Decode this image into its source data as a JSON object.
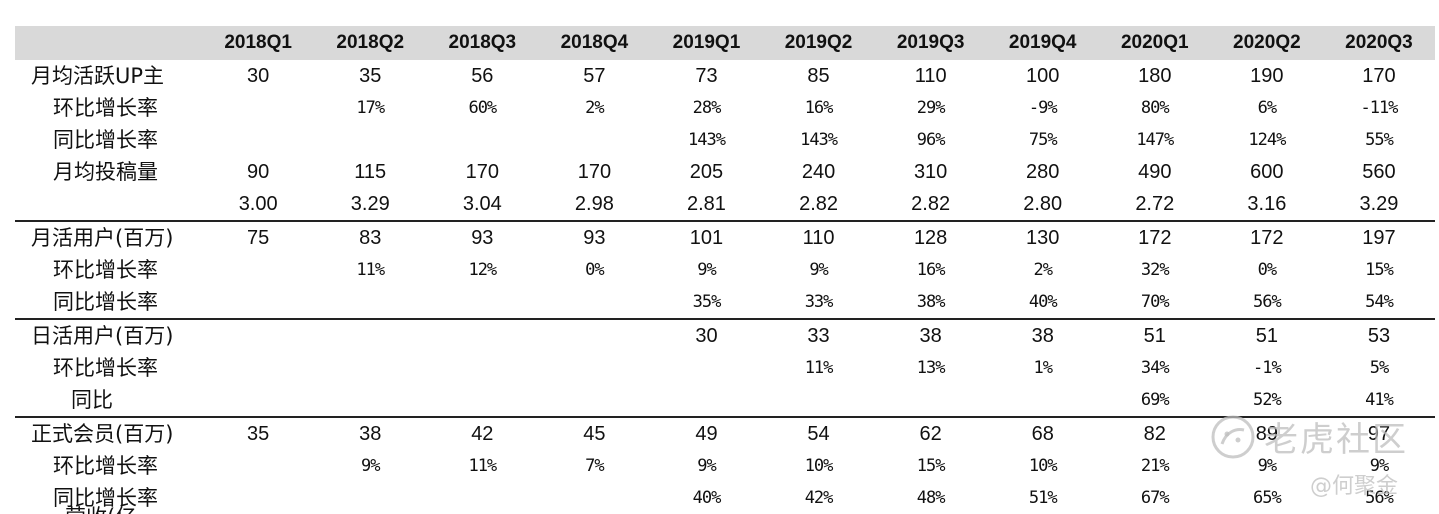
{
  "table": {
    "header": [
      "",
      "2018Q1",
      "2018Q2",
      "2018Q3",
      "2018Q4",
      "2019Q1",
      "2019Q2",
      "2019Q3",
      "2019Q4",
      "2020Q1",
      "2020Q2",
      "2020Q3"
    ],
    "rows": [
      {
        "label": "月均活跃UP主",
        "indent": 1,
        "sep": false,
        "kind": "num",
        "cells": [
          "30",
          "35",
          "56",
          "57",
          "73",
          "85",
          "110",
          "100",
          "180",
          "190",
          "170"
        ]
      },
      {
        "label": "环比增长率",
        "indent": 2,
        "sep": false,
        "kind": "pct",
        "cells": [
          "",
          "17%",
          "60%",
          "2%",
          "28%",
          "16%",
          "29%",
          "-9%",
          "80%",
          "6%",
          "-11%"
        ]
      },
      {
        "label": "同比增长率",
        "indent": 2,
        "sep": false,
        "kind": "pct",
        "cells": [
          "",
          "",
          "",
          "",
          "143%",
          "143%",
          "96%",
          "75%",
          "147%",
          "124%",
          "55%"
        ]
      },
      {
        "label": "月均投稿量",
        "indent": 2,
        "sep": false,
        "kind": "num",
        "cells": [
          "90",
          "115",
          "170",
          "170",
          "205",
          "240",
          "310",
          "280",
          "490",
          "600",
          "560"
        ]
      },
      {
        "label": "",
        "indent": 2,
        "sep": false,
        "kind": "num",
        "cells": [
          "3.00",
          "3.29",
          "3.04",
          "2.98",
          "2.81",
          "2.82",
          "2.82",
          "2.80",
          "2.72",
          "3.16",
          "3.29"
        ]
      },
      {
        "label": "月活用户(百万)",
        "indent": 1,
        "sep": true,
        "kind": "num",
        "cells": [
          "75",
          "83",
          "93",
          "93",
          "101",
          "110",
          "128",
          "130",
          "172",
          "172",
          "197"
        ]
      },
      {
        "label": "环比增长率",
        "indent": 2,
        "sep": false,
        "kind": "pct",
        "cells": [
          "",
          "11%",
          "12%",
          "0%",
          "9%",
          "9%",
          "16%",
          "2%",
          "32%",
          "0%",
          "15%"
        ]
      },
      {
        "label": "同比增长率",
        "indent": 2,
        "sep": false,
        "kind": "pct",
        "cells": [
          "",
          "",
          "",
          "",
          "35%",
          "33%",
          "38%",
          "40%",
          "70%",
          "56%",
          "54%"
        ]
      },
      {
        "label": "日活用户(百万)",
        "indent": 1,
        "sep": true,
        "kind": "num",
        "cells": [
          "",
          "",
          "",
          "",
          "30",
          "33",
          "38",
          "38",
          "51",
          "51",
          "53"
        ]
      },
      {
        "label": "环比增长率",
        "indent": 2,
        "sep": false,
        "kind": "pct",
        "cells": [
          "",
          "",
          "",
          "",
          "",
          "11%",
          "13%",
          "1%",
          "34%",
          "-1%",
          "5%"
        ]
      },
      {
        "label": "同比",
        "indent": 3,
        "sep": false,
        "kind": "pct",
        "cells": [
          "",
          "",
          "",
          "",
          "",
          "",
          "",
          "",
          "69%",
          "52%",
          "41%"
        ]
      },
      {
        "label": "正式会员(百万)",
        "indent": 1,
        "sep": true,
        "kind": "num",
        "cells": [
          "35",
          "38",
          "42",
          "45",
          "49",
          "54",
          "62",
          "68",
          "82",
          "89",
          "97"
        ]
      },
      {
        "label": "环比增长率",
        "indent": 2,
        "sep": false,
        "kind": "pct",
        "cells": [
          "",
          "9%",
          "11%",
          "7%",
          "9%",
          "10%",
          "15%",
          "10%",
          "21%",
          "9%",
          "9%"
        ]
      },
      {
        "label": "同比增长率",
        "indent": 2,
        "sep": false,
        "kind": "pct",
        "cells": [
          "",
          "",
          "",
          "",
          "40%",
          "42%",
          "48%",
          "51%",
          "67%",
          "65%",
          "56%"
        ]
      }
    ],
    "cut_row_label": "营收(亿"
  },
  "watermark": {
    "brand": "老虎社区",
    "user": "@何聚金",
    "icon": "tiger-logo-icon",
    "color": "#bebebe"
  }
}
